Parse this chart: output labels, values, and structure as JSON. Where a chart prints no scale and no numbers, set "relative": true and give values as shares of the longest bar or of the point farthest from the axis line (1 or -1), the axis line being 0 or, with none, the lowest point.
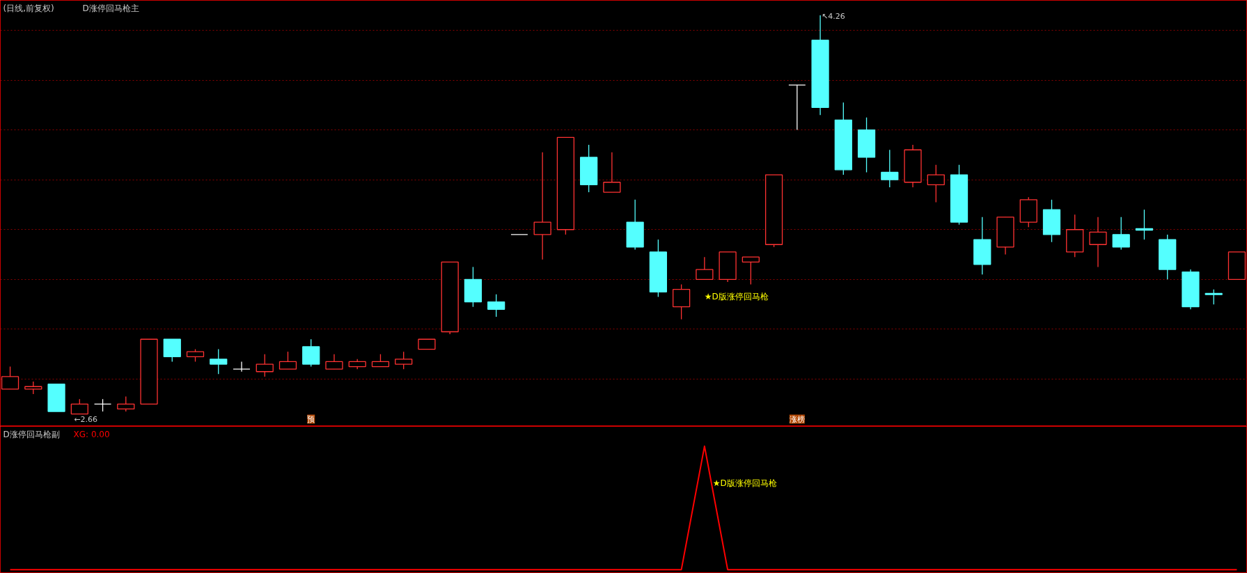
{
  "chart_data": [
    {
      "type": "candlestick",
      "title": "(日线,前复权)",
      "subtitle": "D涨停回马枪主",
      "grid": "y",
      "ylim": [
        2.61,
        4.32
      ],
      "yticks": [
        {
          "value": 2.8,
          "label": null
        },
        {
          "value": 3.0,
          "label": null
        },
        {
          "value": 3.2,
          "label": null
        },
        {
          "value": 3.4,
          "label": null
        },
        {
          "value": 3.6,
          "label": null
        },
        {
          "value": 3.8,
          "label": null
        },
        {
          "value": 4.0,
          "label": null
        },
        {
          "value": 4.2,
          "label": null
        }
      ],
      "categories": [
        null,
        null,
        null,
        null,
        null,
        null,
        null,
        null,
        null,
        null,
        null,
        null,
        null,
        null,
        null,
        null,
        null,
        null,
        null,
        null,
        null,
        null,
        null,
        null,
        null,
        null,
        null,
        null,
        null,
        null,
        null,
        null,
        null,
        null,
        null,
        null,
        null,
        null,
        null,
        null,
        null,
        null,
        null,
        null,
        null,
        null,
        null,
        null,
        null,
        null,
        null,
        null,
        null,
        null
      ],
      "ohlc": [
        [
          2.76,
          2.85,
          2.76,
          2.81
        ],
        [
          2.76,
          2.79,
          2.74,
          2.77
        ],
        [
          2.78,
          2.78,
          2.67,
          2.67
        ],
        [
          2.66,
          2.72,
          2.66,
          2.7
        ],
        [
          2.7,
          2.72,
          2.67,
          2.7
        ],
        [
          2.68,
          2.73,
          2.67,
          2.7
        ],
        [
          2.7,
          2.96,
          2.7,
          2.96
        ],
        [
          2.96,
          2.96,
          2.87,
          2.89
        ],
        [
          2.89,
          2.92,
          2.87,
          2.91
        ],
        [
          2.88,
          2.92,
          2.82,
          2.86
        ],
        [
          2.84,
          2.87,
          2.83,
          2.84
        ],
        [
          2.83,
          2.9,
          2.81,
          2.86
        ],
        [
          2.84,
          2.91,
          2.84,
          2.87
        ],
        [
          2.93,
          2.96,
          2.85,
          2.86
        ],
        [
          2.84,
          2.9,
          2.84,
          2.87
        ],
        [
          2.85,
          2.88,
          2.84,
          2.87
        ],
        [
          2.85,
          2.9,
          2.85,
          2.87
        ],
        [
          2.86,
          2.91,
          2.84,
          2.88
        ],
        [
          2.92,
          2.96,
          2.92,
          2.96
        ],
        [
          2.99,
          3.27,
          2.98,
          3.27
        ],
        [
          3.2,
          3.25,
          3.09,
          3.11
        ],
        [
          3.11,
          3.14,
          3.05,
          3.08
        ],
        [
          3.38,
          3.38,
          3.38,
          3.38
        ],
        [
          3.38,
          3.71,
          3.28,
          3.43
        ],
        [
          3.4,
          3.77,
          3.38,
          3.77
        ],
        [
          3.69,
          3.74,
          3.55,
          3.58
        ],
        [
          3.55,
          3.71,
          3.55,
          3.59
        ],
        [
          3.43,
          3.52,
          3.32,
          3.33
        ],
        [
          3.31,
          3.36,
          3.13,
          3.15
        ],
        [
          3.09,
          3.18,
          3.04,
          3.16
        ],
        [
          3.2,
          3.29,
          3.2,
          3.24
        ],
        [
          3.2,
          3.31,
          3.19,
          3.31
        ],
        [
          3.27,
          3.29,
          3.18,
          3.29
        ],
        [
          3.34,
          3.62,
          3.33,
          3.62
        ],
        [
          3.98,
          3.98,
          3.8,
          3.98
        ],
        [
          4.16,
          4.26,
          3.86,
          3.89
        ],
        [
          3.84,
          3.91,
          3.62,
          3.64
        ],
        [
          3.8,
          3.85,
          3.63,
          3.69
        ],
        [
          3.63,
          3.72,
          3.57,
          3.6
        ],
        [
          3.59,
          3.74,
          3.57,
          3.72
        ],
        [
          3.58,
          3.66,
          3.51,
          3.62
        ],
        [
          3.62,
          3.66,
          3.42,
          3.43
        ],
        [
          3.36,
          3.45,
          3.22,
          3.26
        ],
        [
          3.33,
          3.45,
          3.3,
          3.45
        ],
        [
          3.43,
          3.53,
          3.41,
          3.52
        ],
        [
          3.48,
          3.52,
          3.35,
          3.38
        ],
        [
          3.31,
          3.46,
          3.29,
          3.4
        ],
        [
          3.34,
          3.45,
          3.25,
          3.39
        ],
        [
          3.38,
          3.45,
          3.32,
          3.33
        ],
        [
          3.404,
          3.48,
          3.36,
          3.398
        ],
        [
          3.36,
          3.38,
          3.2,
          3.24
        ],
        [
          3.23,
          3.24,
          3.08,
          3.09
        ],
        [
          3.144,
          3.16,
          3.1,
          3.139
        ],
        [
          3.2,
          3.31,
          3.2,
          3.31
        ]
      ],
      "annotations": [
        "↖4.26",
        "←2.66",
        "★D版涨停回马枪",
        "预",
        "涨榜"
      ]
    },
    {
      "type": "line",
      "title": "D涨停回马枪副",
      "relative": true,
      "color": "#ff0000",
      "categories": [
        null,
        null,
        null,
        null,
        null,
        null,
        null,
        null,
        null,
        null,
        null,
        null,
        null,
        null,
        null,
        null,
        null,
        null,
        null,
        null,
        null,
        null,
        null,
        null,
        null,
        null,
        null,
        null,
        null,
        null,
        null,
        null,
        null,
        null,
        null,
        null,
        null,
        null,
        null,
        null,
        null,
        null,
        null,
        null,
        null,
        null,
        null,
        null,
        null,
        null,
        null,
        null,
        null,
        null
      ],
      "values": [
        0,
        0,
        0,
        0,
        0,
        0,
        0,
        0,
        0,
        0,
        0,
        0,
        0,
        0,
        0,
        0,
        0,
        0,
        0,
        0,
        0,
        0,
        0,
        0,
        0,
        0,
        0,
        0,
        0,
        0,
        1,
        0,
        0,
        0,
        0,
        0,
        0,
        0,
        0,
        0,
        0,
        0,
        0,
        0,
        0,
        0,
        0,
        0,
        0,
        0,
        0,
        0,
        0,
        0
      ],
      "annotations": [
        "XG: 0.00",
        "★D版涨停回马枪"
      ]
    }
  ]
}
